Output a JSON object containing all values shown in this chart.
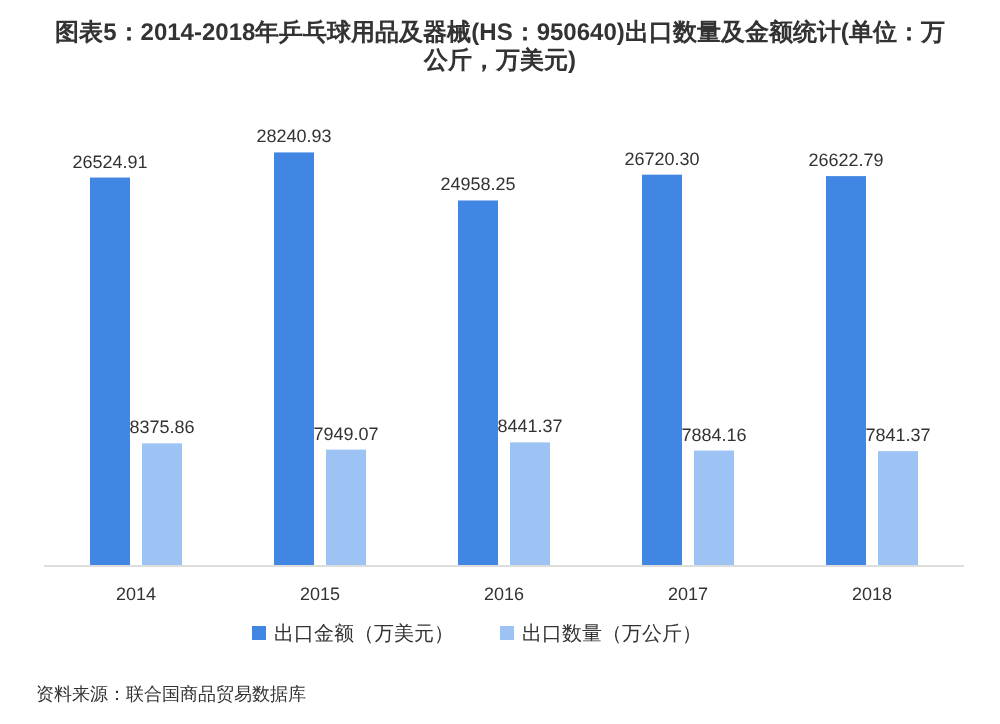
{
  "chart_data": {
    "type": "bar",
    "title": "图表5：2014-2018年乒乓球用品及器械(HS：950640)出口数量及金额统计(单位：万公斤，万美元)",
    "categories": [
      "2014",
      "2015",
      "2016",
      "2017",
      "2018"
    ],
    "series": [
      {
        "name": "出口金额（万美元）",
        "color": "#4286e3",
        "values": [
          26524.91,
          28240.93,
          24958.25,
          26720.3,
          26622.79
        ],
        "value_labels": [
          "26524.91",
          "28240.93",
          "24958.25",
          "26720.30",
          "26622.79"
        ]
      },
      {
        "name": "出口数量（万公斤）",
        "color": "#9dc3f5",
        "values": [
          8375.86,
          7949.07,
          8441.37,
          7884.16,
          7841.37
        ],
        "value_labels": [
          "8375.86",
          "7949.07",
          "8441.37",
          "7884.16",
          "7841.37"
        ]
      }
    ],
    "legend": "bottom",
    "grid": false,
    "annotations": [
      "资料来源：联合国商品贸易数据库"
    ]
  }
}
